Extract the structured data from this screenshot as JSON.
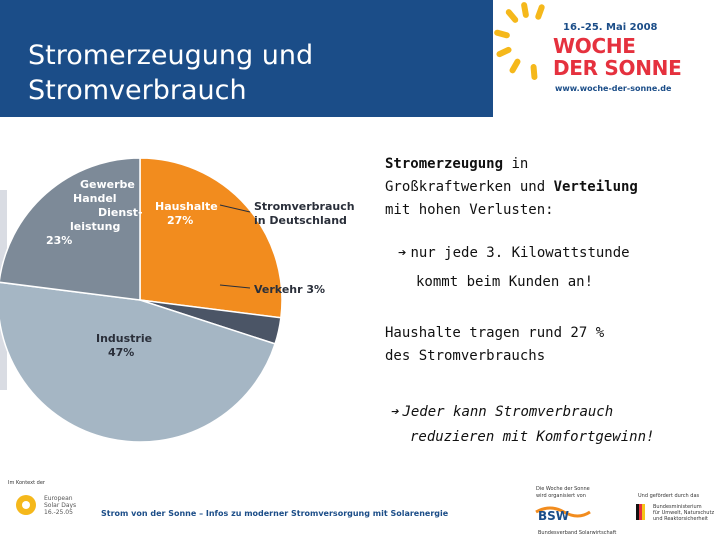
{
  "header": {
    "title_lines": [
      "Stromerzeugung und",
      "Stromverbrauch"
    ],
    "event": {
      "date": "16.-25. Mai 2008",
      "name_lines": [
        "WOCHE",
        "DER SONNE"
      ],
      "url": "www.woche-der-sonne.de"
    }
  },
  "chart": {
    "type": "pie",
    "title_lines": [
      "Stromverbrauch",
      "in Deutschland"
    ],
    "slices": [
      {
        "name": "Haushalte",
        "value": 27,
        "label_lines": [
          "Haushalte",
          "27%"
        ],
        "color": "#f28c1e"
      },
      {
        "name": "Verkehr",
        "value": 3,
        "label_lines": [
          "Verkehr 3%"
        ],
        "color": "#4b5566"
      },
      {
        "name": "Industrie",
        "value": 47,
        "label_lines": [
          "Industrie",
          "47%"
        ],
        "color": "#a5b6c4"
      },
      {
        "name": "Gewerbe Handel Dienstleistung",
        "value": 23,
        "label_lines": [
          "Gewerbe",
          "Handel",
          "Dienst-",
          "leistung",
          "23%"
        ],
        "color": "#7d8a98"
      }
    ]
  },
  "content": {
    "block1": {
      "bold1": "Stromerzeugung",
      "after_bold1": " in",
      "line2_pre": "Großkraftwerken und ",
      "bold2": "Verteilung",
      "line3": "mit hohen Verlusten:"
    },
    "block2": {
      "arrow": "➔",
      "line1": "nur jede 3. Kilowattstunde",
      "line2": "kommt beim Kunden an!"
    },
    "block3": {
      "line1": "Haushalte tragen rund 27 %",
      "line2": "des Stromverbrauchs"
    },
    "block4": {
      "arrow": "➔",
      "line1": "Jeder kann Stromverbrauch",
      "line2": "reduzieren mit Komfortgewinn!"
    }
  },
  "footer": {
    "context_text": "Im Kontext der",
    "partner_lines": [
      "European",
      "Solar Days",
      "16.-25.05"
    ],
    "tagline": "Strom von der Sonne – Infos zu moderner Stromversorgung mit Solarenergie",
    "organizer_lines": [
      "Die Woche der Sonne",
      "wird organisiert von"
    ],
    "bsw": "BSW",
    "bsw_sub": "Bundesverband Solarwirtschaft",
    "sponsor_lines": [
      "Und gefördert durch das"
    ],
    "ministry_lines": [
      "Bundesministerium",
      "für Umwelt, Naturschutz",
      "und Reaktorsicherheit"
    ]
  }
}
